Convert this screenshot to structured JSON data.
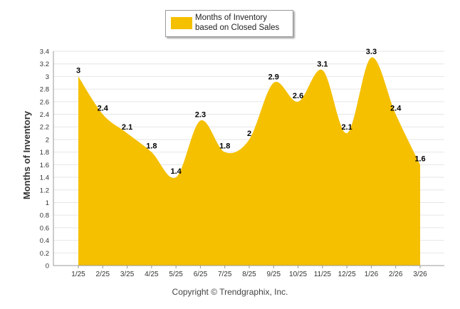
{
  "chart_data": {
    "type": "area",
    "categories": [
      "1/25",
      "2/25",
      "3/25",
      "4/25",
      "5/25",
      "6/25",
      "7/25",
      "8/25",
      "9/25",
      "10/25",
      "11/25",
      "12/25",
      "1/26",
      "2/26",
      "3/26"
    ],
    "series": [
      {
        "name": "Months of Inventory based on Closed Sales",
        "values": [
          3,
          2.4,
          2.1,
          1.8,
          1.4,
          2.3,
          1.8,
          2,
          2.9,
          2.6,
          3.1,
          2.1,
          3.3,
          2.4,
          1.6
        ]
      }
    ],
    "data_labels": [
      "3",
      "2.4",
      "2.1",
      "1.8",
      "1.4",
      "2.3",
      "1.8",
      "2",
      "2.9",
      "2.6",
      "3.1",
      "2.1",
      "3.3",
      "2.4",
      "1.6"
    ],
    "yticks": [
      "0",
      "0.2",
      "0.4",
      "0.6",
      "0.8",
      "1",
      "1.2",
      "1.4",
      "1.6",
      "1.8",
      "2",
      "2.2",
      "2.4",
      "2.6",
      "2.8",
      "3",
      "3.2",
      "3.4"
    ],
    "ylim": [
      0,
      3.4
    ],
    "ylabel": "Months of Inventory",
    "xlabel": "",
    "title": "",
    "grid": true,
    "legend_position": "top-center",
    "fill_color": "#F5C000"
  },
  "legend": {
    "label": "Months of Inventory based on Closed Sales"
  },
  "footer": {
    "copyright": "Copyright © Trendgraphix, Inc."
  }
}
